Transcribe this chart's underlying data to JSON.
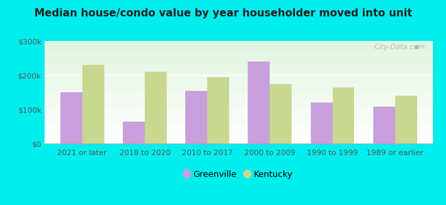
{
  "title": "Median house/condo value by year householder moved into unit",
  "categories": [
    "2021 or later",
    "2018 to 2020",
    "2010 to 2017",
    "2000 to 2009",
    "1990 to 1999",
    "1989 or earlier"
  ],
  "greenville": [
    150000,
    65000,
    155000,
    240000,
    120000,
    108000
  ],
  "kentucky": [
    230000,
    210000,
    195000,
    175000,
    165000,
    140000
  ],
  "greenville_color": "#c9a0dc",
  "kentucky_color": "#c8d890",
  "background_color": "#00eeee",
  "ylim": [
    0,
    300000
  ],
  "yticks": [
    0,
    100000,
    200000,
    300000
  ],
  "ytick_labels": [
    "$0",
    "$100k",
    "$200k",
    "$300k"
  ],
  "legend_greenville": "Greenville",
  "legend_kentucky": "Kentucky",
  "watermark": "City-Data.com",
  "bar_width": 0.35,
  "plot_bg_color": "#e8f5e0"
}
